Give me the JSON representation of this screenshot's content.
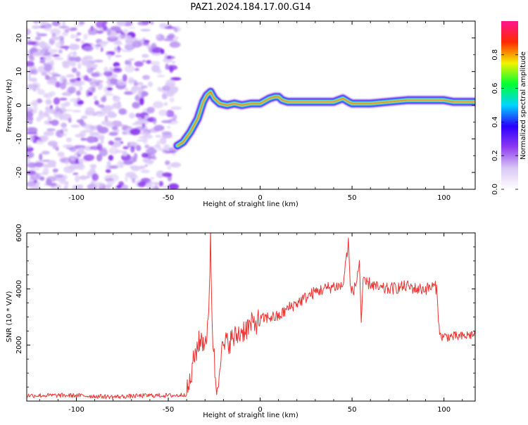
{
  "figure": {
    "title": "PAZ1.2024.184.17.00.G14"
  },
  "chart_data": [
    {
      "type": "heatmap",
      "name": "spectrogram",
      "xlabel": "Height of straight line (km)",
      "ylabel": "Frequency (Hz)",
      "xlim": [
        -127,
        117
      ],
      "ylim": [
        -25,
        25
      ],
      "xticks": [
        -100,
        -50,
        0,
        50,
        100
      ],
      "yticks": [
        -20,
        -10,
        0,
        10,
        20
      ],
      "colormap": [
        "#ffffff",
        "#d9c8f5",
        "#8f3cf0",
        "#2a00ff",
        "#00d5ff",
        "#00ff33",
        "#f2f200",
        "#ff2a00",
        "#ff1493"
      ],
      "noise_region": {
        "x": [
          -127,
          -45
        ],
        "amplitude": 0.2
      },
      "trace": {
        "x": [
          -45,
          -42,
          -38,
          -34,
          -31,
          -29,
          -27,
          -25,
          -22,
          -18,
          -14,
          -10,
          -5,
          0,
          5,
          8,
          10,
          12,
          15,
          20,
          30,
          40,
          45,
          48,
          50,
          55,
          60,
          70,
          80,
          85,
          90,
          95,
          100,
          105,
          110,
          117
        ],
        "y": [
          -12,
          -11,
          -8,
          -4,
          1,
          3,
          4,
          2,
          0.5,
          0,
          0.5,
          0,
          0.5,
          0.5,
          2,
          2.5,
          2.5,
          1.5,
          1,
          1,
          1,
          1,
          2,
          1,
          0.5,
          0.5,
          0.5,
          1,
          1.5,
          1.5,
          1.5,
          1.5,
          1.5,
          1,
          1,
          1
        ]
      },
      "colorbar": {
        "label": "Normalized spectral amplitude",
        "ticks": [
          0.0,
          0.2,
          0.4,
          0.6,
          0.8
        ],
        "range": [
          0,
          1
        ]
      }
    },
    {
      "type": "line",
      "name": "snr",
      "xlabel": "Height of straight line (km)",
      "ylabel": "SNR (10 * V/V)",
      "xlim": [
        -127,
        117
      ],
      "ylim": [
        0,
        6000
      ],
      "xticks": [
        -100,
        -50,
        0,
        50,
        100
      ],
      "yticks": [
        2000,
        4000,
        6000
      ],
      "color": "#ee3333",
      "series": [
        {
          "x": [
            -127,
            -100,
            -80,
            -60,
            -45,
            -40,
            -38,
            -36,
            -34,
            -32,
            -30,
            -28,
            -27,
            -26,
            -25,
            -24,
            -23,
            -22,
            -20,
            -18,
            -15,
            -10,
            -5,
            0,
            5,
            10,
            15,
            20,
            25,
            30,
            35,
            40,
            45,
            48,
            49,
            50,
            52,
            54,
            55,
            56,
            60,
            65,
            70,
            80,
            85,
            90,
            95,
            96,
            97,
            98,
            100,
            105,
            110,
            117
          ],
          "y": [
            200,
            200,
            150,
            200,
            200,
            250,
            700,
            1500,
            2000,
            2200,
            2100,
            2800,
            6000,
            2500,
            1500,
            400,
            600,
            1500,
            1900,
            2100,
            2200,
            2500,
            2700,
            2900,
            3000,
            3000,
            3300,
            3500,
            3700,
            3900,
            4000,
            4100,
            4100,
            5700,
            4100,
            3900,
            4100,
            5000,
            2800,
            4200,
            4200,
            4000,
            4000,
            4100,
            4000,
            4000,
            4100,
            4000,
            3000,
            2300,
            2300,
            2300,
            2300,
            2400
          ]
        }
      ]
    }
  ]
}
